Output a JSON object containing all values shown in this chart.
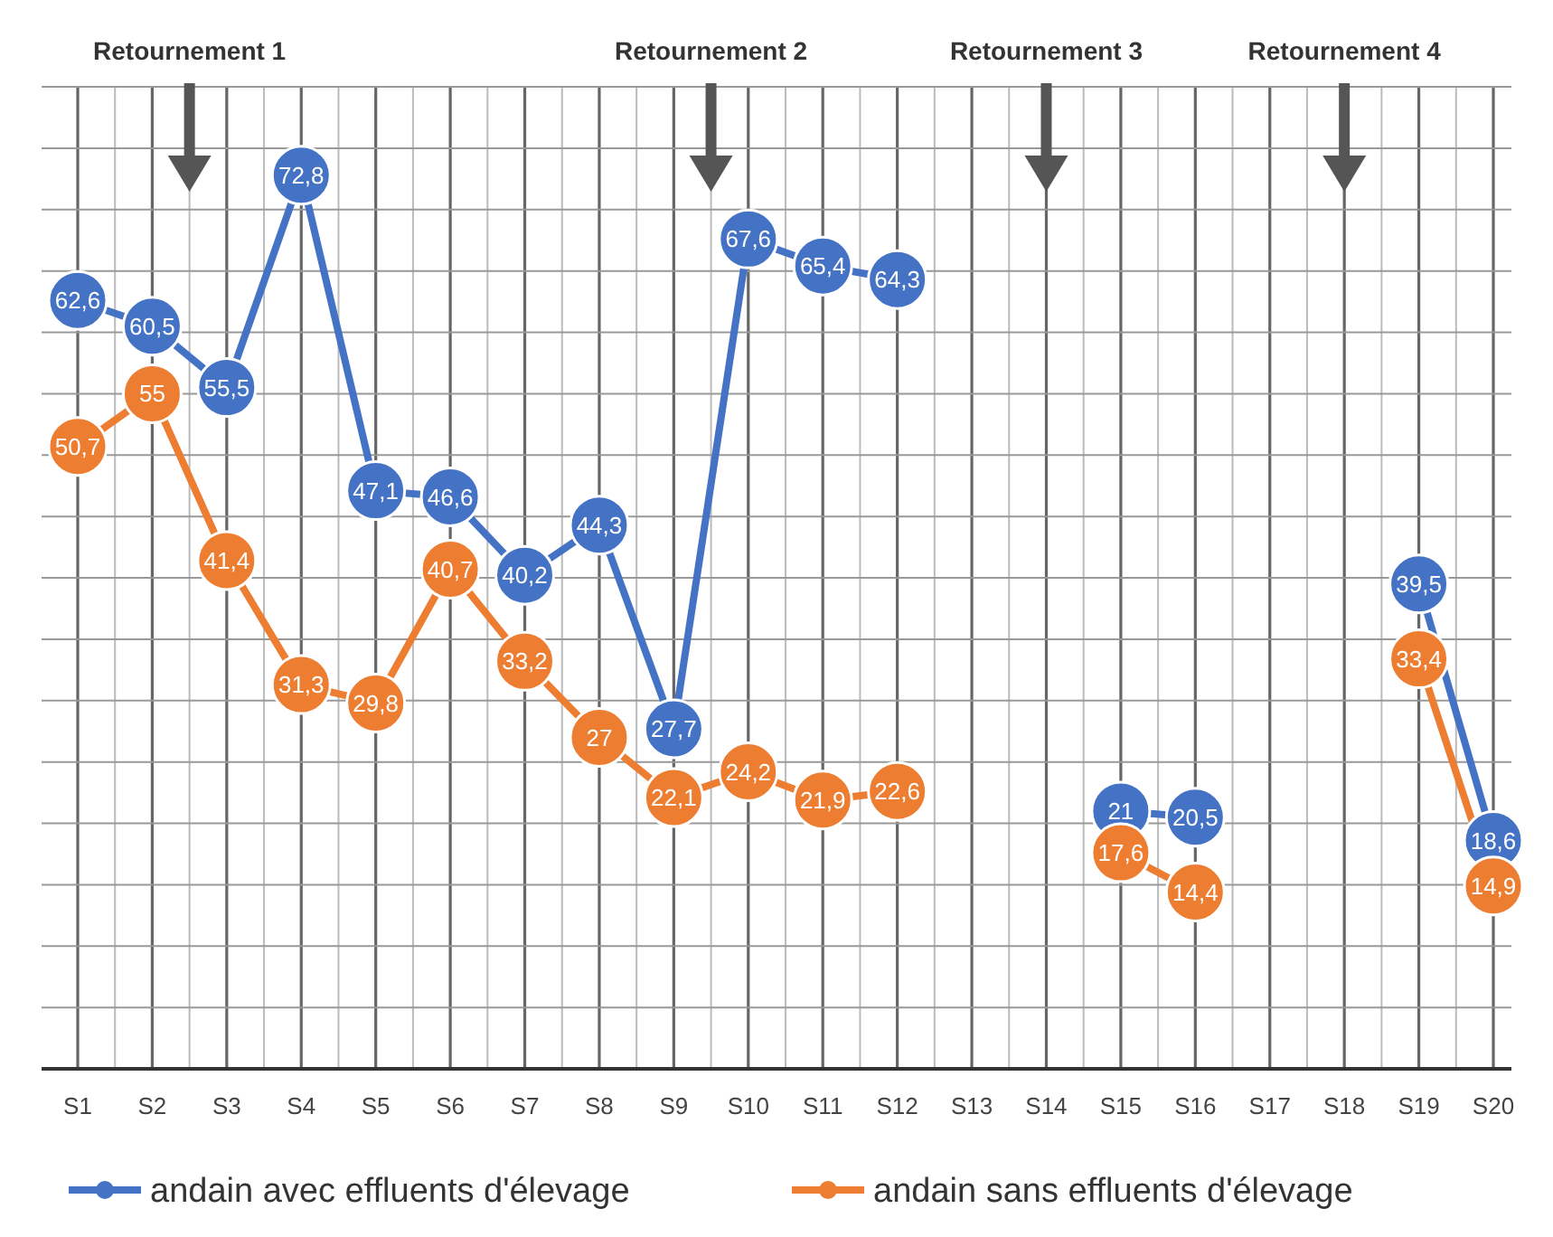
{
  "chart_data": {
    "type": "line",
    "categories": [
      "S1",
      "S2",
      "S3",
      "S4",
      "S5",
      "S6",
      "S7",
      "S8",
      "S9",
      "S10",
      "S11",
      "S12",
      "S13",
      "S14",
      "S15",
      "S16",
      "S17",
      "S18",
      "S19",
      "S20"
    ],
    "series": [
      {
        "name": "andain avec effluents d'élevage",
        "color": "#4472c4",
        "values": [
          62.6,
          60.5,
          55.5,
          72.8,
          47.1,
          46.6,
          40.2,
          44.3,
          27.7,
          67.6,
          65.4,
          64.3,
          null,
          null,
          21,
          20.5,
          null,
          null,
          39.5,
          18.6
        ],
        "value_labels": [
          "62,6",
          "60,5",
          "55,5",
          "72,8",
          "47,1",
          "46,6",
          "40,2",
          "44,3",
          "27,7",
          "67,6",
          "65,4",
          "64,3",
          null,
          null,
          "21",
          "20,5",
          null,
          null,
          "39,5",
          "18,6"
        ]
      },
      {
        "name": "andain sans effluents d'élevage",
        "color": "#ed7d31",
        "values": [
          50.7,
          55,
          41.4,
          31.3,
          29.8,
          40.7,
          33.2,
          27,
          22.1,
          24.2,
          21.9,
          22.6,
          null,
          null,
          17.6,
          14.4,
          null,
          null,
          33.4,
          14.9
        ],
        "value_labels": [
          "50,7",
          "55",
          "41,4",
          "31,3",
          "29,8",
          "40,7",
          "33,2",
          "27",
          "22,1",
          "24,2",
          "21,9",
          "22,6",
          null,
          null,
          "17,6",
          "14,4",
          null,
          null,
          "33,4",
          "14,9"
        ]
      }
    ],
    "ylim": [
      0,
      80
    ],
    "yticks": [
      {
        "value": 0,
        "label": null
      },
      {
        "value": 5,
        "label": null
      },
      {
        "value": 10,
        "label": null
      },
      {
        "value": 15,
        "label": null
      },
      {
        "value": 20,
        "label": null
      },
      {
        "value": 25,
        "label": null
      },
      {
        "value": 30,
        "label": null
      },
      {
        "value": 35,
        "label": null
      },
      {
        "value": 40,
        "label": null
      },
      {
        "value": 45,
        "label": null
      },
      {
        "value": 50,
        "label": null
      },
      {
        "value": 55,
        "label": null
      },
      {
        "value": 60,
        "label": null
      },
      {
        "value": 65,
        "label": null
      },
      {
        "value": 70,
        "label": null
      },
      {
        "value": 75,
        "label": null
      },
      {
        "value": 80,
        "label": null
      }
    ],
    "tick_labels": "x",
    "grid": true,
    "legend": "bottom",
    "marker": "circle",
    "line_style": "solid",
    "annotations": [
      "Retournement 1",
      "Retournement 2",
      "Retournement 3",
      "Retournement 4"
    ]
  }
}
